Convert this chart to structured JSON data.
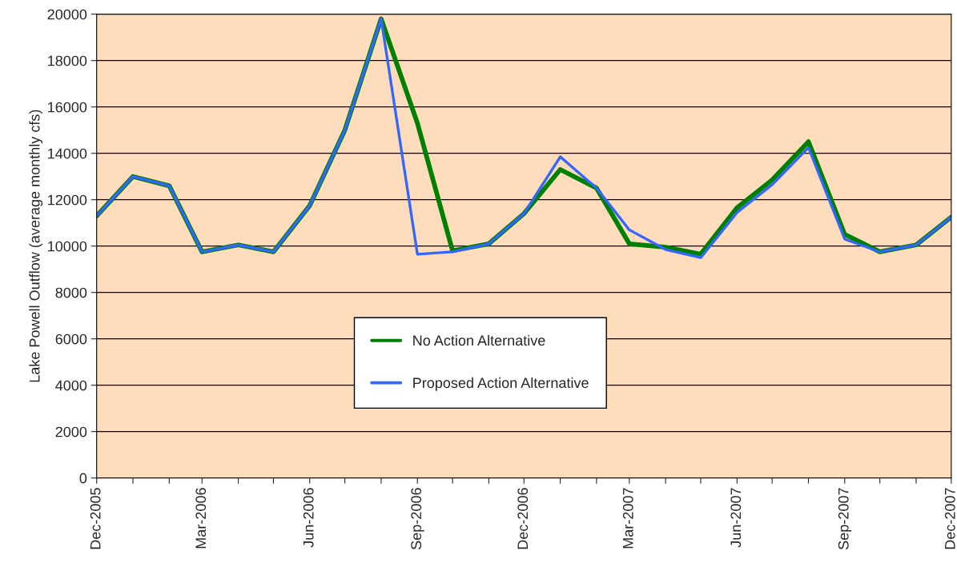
{
  "chart_data": {
    "type": "line",
    "ylabel": "Lake Powell Outflow (average monthly cfs)",
    "x": [
      "2005-12",
      "2006-01",
      "2006-02",
      "2006-03",
      "2006-04",
      "2006-05",
      "2006-06",
      "2006-07",
      "2006-08",
      "2006-09",
      "2006-10",
      "2006-11",
      "2006-12",
      "2007-01",
      "2007-02",
      "2007-03",
      "2007-04",
      "2007-05",
      "2007-06",
      "2007-07",
      "2007-08",
      "2007-09",
      "2007-10",
      "2007-11",
      "2007-12"
    ],
    "series": [
      {
        "name": "No Action Alternative",
        "color": "#008000",
        "values": [
          11300,
          13000,
          12600,
          9750,
          10050,
          9750,
          11750,
          15000,
          19800,
          15300,
          9800,
          10100,
          11400,
          13300,
          12500,
          10100,
          9950,
          9650,
          11650,
          12850,
          14500,
          10500,
          9750,
          10050,
          11250
        ]
      },
      {
        "name": "Proposed Action Alternative",
        "color": "#3366ff",
        "values": [
          11300,
          13000,
          12600,
          9750,
          10050,
          9750,
          11750,
          15000,
          19800,
          9650,
          9750,
          10100,
          11400,
          13850,
          12500,
          10700,
          9850,
          9500,
          11450,
          12650,
          14250,
          10300,
          9750,
          10050,
          11250
        ]
      }
    ],
    "xlim": [
      "2005-12",
      "2007-12"
    ],
    "xticks": [
      {
        "value": "2005-12",
        "label": "Dec-2005"
      },
      {
        "value": "2006-01",
        "label": null
      },
      {
        "value": "2006-02",
        "label": null
      },
      {
        "value": "2006-03",
        "label": "Mar-2006"
      },
      {
        "value": "2006-04",
        "label": null
      },
      {
        "value": "2006-05",
        "label": null
      },
      {
        "value": "2006-06",
        "label": "Jun-2006"
      },
      {
        "value": "2006-07",
        "label": null
      },
      {
        "value": "2006-08",
        "label": null
      },
      {
        "value": "2006-09",
        "label": "Sep-2006"
      },
      {
        "value": "2006-10",
        "label": null
      },
      {
        "value": "2006-11",
        "label": null
      },
      {
        "value": "2006-12",
        "label": "Dec-2006"
      },
      {
        "value": "2007-01",
        "label": null
      },
      {
        "value": "2007-02",
        "label": null
      },
      {
        "value": "2007-03",
        "label": "Mar-2007"
      },
      {
        "value": "2007-04",
        "label": null
      },
      {
        "value": "2007-05",
        "label": null
      },
      {
        "value": "2007-06",
        "label": "Jun-2007"
      },
      {
        "value": "2007-07",
        "label": null
      },
      {
        "value": "2007-08",
        "label": null
      },
      {
        "value": "2007-09",
        "label": "Sep-2007"
      },
      {
        "value": "2007-10",
        "label": null
      },
      {
        "value": "2007-11",
        "label": null
      },
      {
        "value": "2007-12",
        "label": "Dec-2007"
      }
    ],
    "ylim": [
      0,
      20000
    ],
    "yticks": [
      0,
      2000,
      4000,
      6000,
      8000,
      10000,
      12000,
      14000,
      16000,
      18000,
      20000
    ],
    "grid": "y",
    "legend": "bottom",
    "marker": "none",
    "line_style": "solid"
  }
}
